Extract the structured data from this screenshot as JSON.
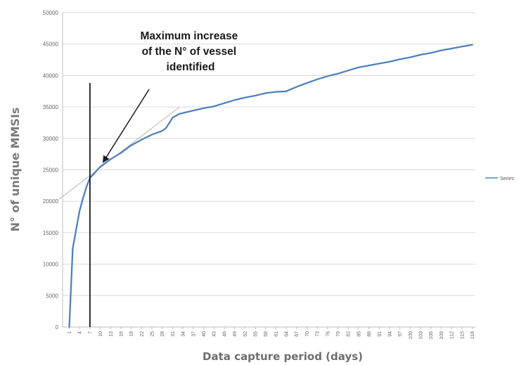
{
  "chart_data": {
    "type": "line",
    "title": "",
    "xlabel": "Data capture period (days)",
    "ylabel": "N° of unique MMSIs",
    "ylim": [
      0,
      50000
    ],
    "yticks": [
      0,
      5000,
      10000,
      15000,
      20000,
      25000,
      30000,
      35000,
      40000,
      45000,
      50000
    ],
    "xlim": [
      1,
      118
    ],
    "xticks": [
      1,
      4,
      7,
      10,
      13,
      16,
      19,
      22,
      25,
      28,
      31,
      34,
      37,
      40,
      43,
      46,
      49,
      52,
      55,
      58,
      61,
      64,
      67,
      70,
      73,
      76,
      79,
      82,
      85,
      88,
      91,
      94,
      97,
      100,
      103,
      106,
      109,
      112,
      115,
      118
    ],
    "grid": true,
    "legend_position": "right",
    "series": [
      {
        "name": "Series",
        "color": "#4f81bd",
        "points": [
          [
            1,
            0
          ],
          [
            2,
            12500
          ],
          [
            3,
            15500
          ],
          [
            4,
            18500
          ],
          [
            5,
            20500
          ],
          [
            6,
            22300
          ],
          [
            7,
            23700
          ],
          [
            8,
            24300
          ],
          [
            9,
            24900
          ],
          [
            10,
            25500
          ],
          [
            13,
            26700
          ],
          [
            16,
            27700
          ],
          [
            19,
            28900
          ],
          [
            22,
            29800
          ],
          [
            25,
            30600
          ],
          [
            28,
            31200
          ],
          [
            29,
            31600
          ],
          [
            30,
            32400
          ],
          [
            31,
            33300
          ],
          [
            33,
            33900
          ],
          [
            36,
            34300
          ],
          [
            40,
            34800
          ],
          [
            43,
            35100
          ],
          [
            46,
            35600
          ],
          [
            49,
            36100
          ],
          [
            52,
            36500
          ],
          [
            55,
            36800
          ],
          [
            58,
            37200
          ],
          [
            61,
            37400
          ],
          [
            64,
            37500
          ],
          [
            67,
            38200
          ],
          [
            70,
            38800
          ],
          [
            73,
            39400
          ],
          [
            76,
            39900
          ],
          [
            79,
            40300
          ],
          [
            82,
            40800
          ],
          [
            85,
            41300
          ],
          [
            88,
            41600
          ],
          [
            91,
            41900
          ],
          [
            94,
            42200
          ],
          [
            97,
            42600
          ],
          [
            100,
            42900
          ],
          [
            103,
            43300
          ],
          [
            106,
            43600
          ],
          [
            109,
            44000
          ],
          [
            112,
            44300
          ],
          [
            115,
            44600
          ],
          [
            118,
            44900
          ]
        ]
      }
    ],
    "annotations": {
      "arrow_text": [
        "Maximum increase",
        "of the N° of vessel",
        "identified"
      ],
      "vertical_marker_x": 7,
      "tangent_line": [
        [
          -2,
          20300
        ],
        [
          33,
          35000
        ]
      ]
    }
  }
}
